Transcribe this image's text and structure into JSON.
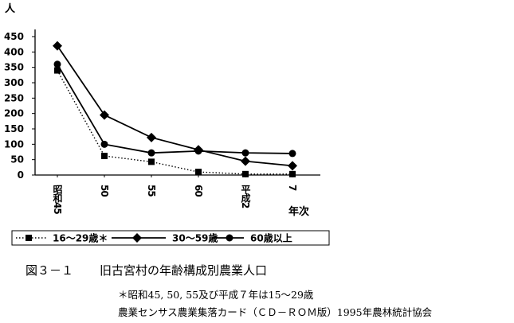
{
  "chart_data": {
    "type": "line",
    "title": "",
    "y_unit_label": "人",
    "x_axis_label": "年次",
    "categories": [
      "昭和45",
      "50",
      "55",
      "60",
      "平成2",
      "7"
    ],
    "ylim": [
      0,
      450
    ],
    "yticks": [
      0,
      50,
      100,
      150,
      200,
      250,
      300,
      350,
      400,
      450
    ],
    "grid": "none",
    "legend_position": "bottom",
    "series": [
      {
        "name": "16～29歳＊",
        "marker": "square",
        "line_style": "dotted",
        "values": [
          340,
          62,
          43,
          10,
          3,
          3
        ]
      },
      {
        "name": "30～59歳",
        "marker": "diamond",
        "line_style": "solid",
        "values": [
          420,
          195,
          122,
          82,
          45,
          30
        ]
      },
      {
        "name": "60歳以上",
        "marker": "circle",
        "line_style": "solid",
        "values": [
          360,
          100,
          72,
          78,
          72,
          70
        ]
      }
    ]
  },
  "caption": {
    "figure_number": "図３－１",
    "title": "旧古宮村の年齢構成別農業人口"
  },
  "notes": {
    "line1": "＊昭和45, 50, 55及び平成７年は15～29歳",
    "line2": "農業センサス農業集落カード（ＣＤ－ＲＯＭ版）1995年農林統計協会"
  }
}
